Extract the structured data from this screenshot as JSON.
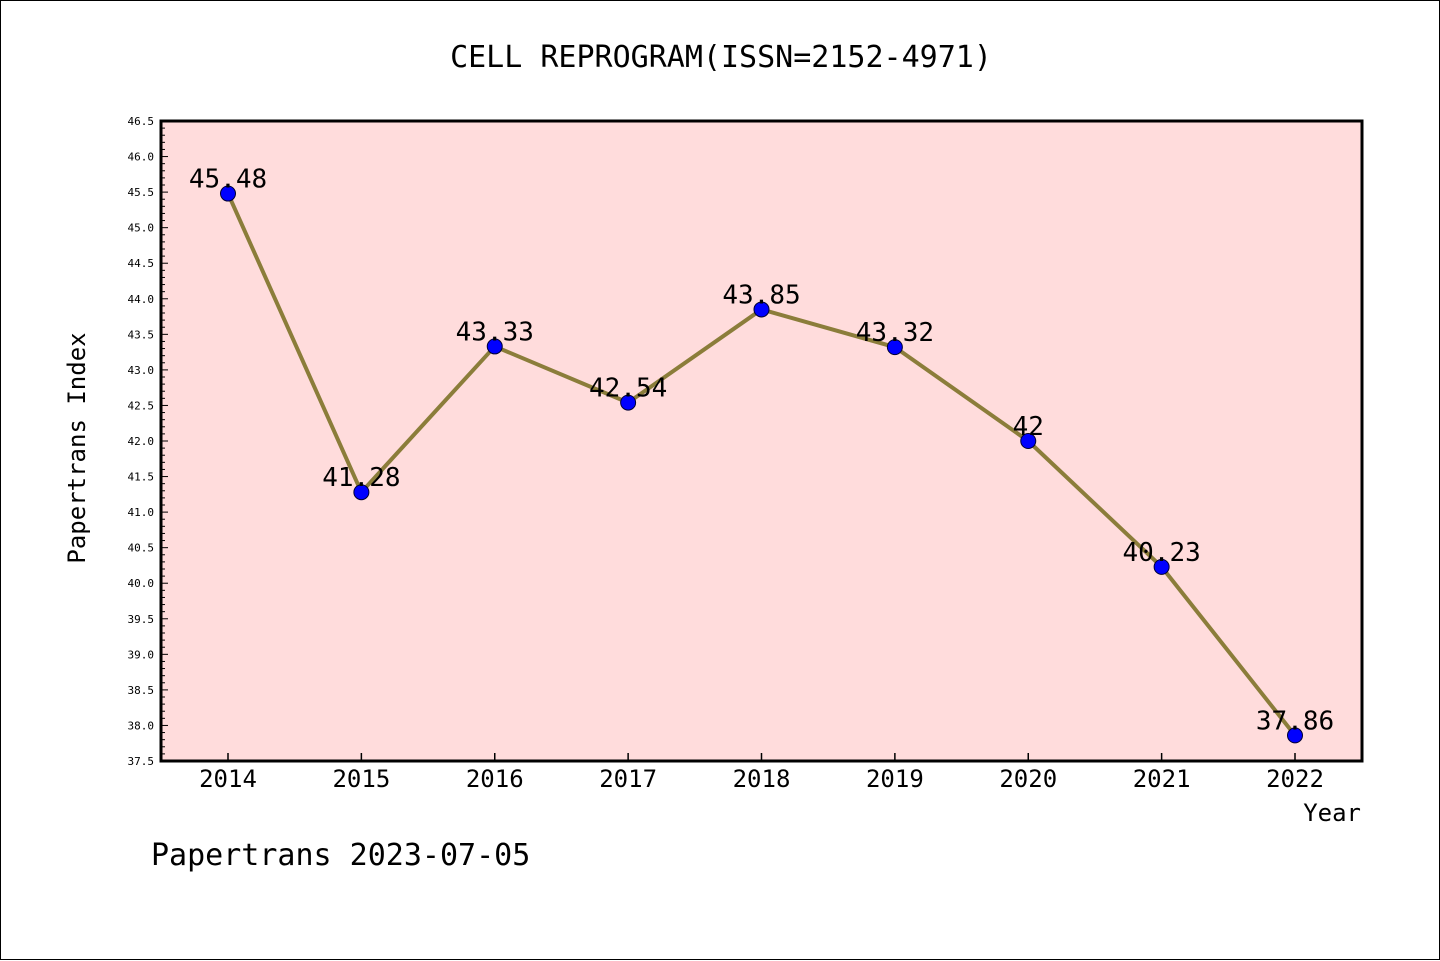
{
  "chart_data": {
    "type": "line",
    "title": "CELL REPROGRAM(ISSN=2152-4971)",
    "xlabel": "Year",
    "ylabel": "Papertrans Index",
    "categories": [
      "2014",
      "2015",
      "2016",
      "2017",
      "2018",
      "2019",
      "2020",
      "2021",
      "2022"
    ],
    "series": [
      {
        "values": [
          45.48,
          41.28,
          43.33,
          42.54,
          43.85,
          43.32,
          42,
          40.23,
          37.86
        ],
        "labels": [
          "45.48",
          "41.28",
          "43.33",
          "42.54",
          "43.85",
          "43.32",
          "42",
          "40.23",
          "37.86"
        ]
      }
    ],
    "ylim": [
      37.5,
      46.5
    ],
    "yticks": [
      "37.5",
      "38.0",
      "38.5",
      "39.0",
      "39.5",
      "40.0",
      "40.5",
      "41.0",
      "41.5",
      "42.0",
      "42.5",
      "43.0",
      "43.5",
      "44.0",
      "44.5",
      "45.0",
      "45.5",
      "46.0",
      "46.5"
    ],
    "grid": false,
    "footer": "Papertrans 2023-07-05",
    "colors": {
      "plot_background": "#ffdcdc",
      "line": "#8b7d3a",
      "marker": "#0000ff",
      "axis": "#000000"
    }
  }
}
